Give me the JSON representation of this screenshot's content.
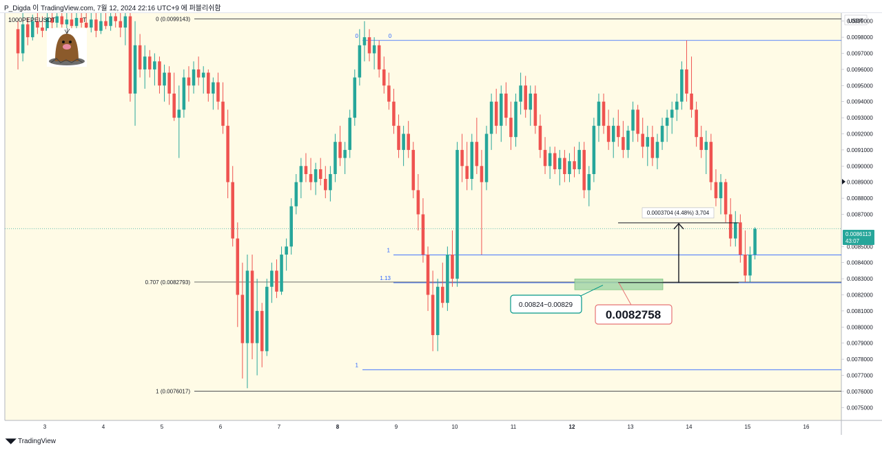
{
  "header": {
    "publish_line": "P_Digda 이 TradingView.com, 7월 12, 2024 22:16 UTC+9 에 퍼블리쉬함"
  },
  "chart_data": {
    "type": "candlestick",
    "symbol": "1000PEPEUSDT",
    "symbol_suffix": "T",
    "currency_label": "USDT",
    "y_range": [
      0.00742,
      0.00995
    ],
    "y_ticks": [
      "0.0099000",
      "0.0098000",
      "0.0097000",
      "0.0096000",
      "0.0095000",
      "0.0094000",
      "0.0093000",
      "0.0092000",
      "0.0091000",
      "0.0090000",
      "0.0089000",
      "0.0088000",
      "0.0087000",
      "0.0085000",
      "0.0084000",
      "0.0083000",
      "0.0082000",
      "0.0081000",
      "0.0080000",
      "0.0079000",
      "0.0078000",
      "0.0077000",
      "0.0076000",
      "0.0075000"
    ],
    "x_ticks": [
      "3",
      "4",
      "5",
      "6",
      "7",
      "8",
      "9",
      "10",
      "11",
      "12",
      "13",
      "14",
      "15",
      "16"
    ],
    "x_ticks_bold": [
      "8",
      "12"
    ],
    "last_price": "0.0086113",
    "countdown": "43:07",
    "fib_set_1": {
      "levels": [
        {
          "label": "0 (0.0099143)",
          "price": 0.0099143
        },
        {
          "label": "0.707 (0.0082793)",
          "price": 0.0082793
        },
        {
          "label": "1 (0.0076017)",
          "price": 0.0076017
        }
      ]
    },
    "fib_set_2": {
      "levels": [
        {
          "label": "0",
          "price": 0.00978
        },
        {
          "label": "0",
          "price": 0.00978
        },
        {
          "label": "1",
          "price": 0.008448
        },
        {
          "label": "1.13",
          "price": 0.008275
        },
        {
          "label": "1",
          "price": 0.007735
        }
      ]
    },
    "support_zone": {
      "from": 0.00824,
      "to": 0.00829
    },
    "annotations": {
      "zone_label": "0.00824~0.00829",
      "price_callout": "0.0082758",
      "measure_label": "0.0003704 (4.48%) 3,704"
    },
    "colors": {
      "background": "#fffbe6",
      "up": "#26a69a",
      "down": "#ef5350",
      "fib_blue": "#2962ff",
      "fib_black": "#131722",
      "zone_fill": "#a5d6a7",
      "callout_teal": "#009688",
      "callout_red": "#e57373",
      "price_badge": "#26a69a"
    },
    "candles_per_day": 12,
    "day_start": 2.5,
    "series": [
      {
        "o": 0.00985,
        "h": 0.0099,
        "l": 0.0096,
        "c": 0.0097
      },
      {
        "o": 0.0097,
        "h": 0.00995,
        "l": 0.00965,
        "c": 0.00988
      },
      {
        "o": 0.00988,
        "h": 0.00992,
        "l": 0.00975,
        "c": 0.0098
      },
      {
        "o": 0.0098,
        "h": 0.00994,
        "l": 0.00978,
        "c": 0.0099
      },
      {
        "o": 0.0099,
        "h": 0.00995,
        "l": 0.00982,
        "c": 0.00986
      },
      {
        "o": 0.00986,
        "h": 0.00993,
        "l": 0.0098,
        "c": 0.00984
      },
      {
        "o": 0.00984,
        "h": 0.00995,
        "l": 0.00983,
        "c": 0.00992
      },
      {
        "o": 0.00992,
        "h": 0.00995,
        "l": 0.00985,
        "c": 0.00989
      },
      {
        "o": 0.00989,
        "h": 0.00995,
        "l": 0.00986,
        "c": 0.00993
      },
      {
        "o": 0.00993,
        "h": 0.00995,
        "l": 0.00986,
        "c": 0.00988
      },
      {
        "o": 0.00988,
        "h": 0.00995,
        "l": 0.00984,
        "c": 0.00991
      },
      {
        "o": 0.00991,
        "h": 0.00995,
        "l": 0.00985,
        "c": 0.00987
      },
      {
        "o": 0.00987,
        "h": 0.00995,
        "l": 0.00984,
        "c": 0.00992
      },
      {
        "o": 0.00992,
        "h": 0.00995,
        "l": 0.00986,
        "c": 0.00989
      },
      {
        "o": 0.00989,
        "h": 0.00995,
        "l": 0.00984,
        "c": 0.00986
      },
      {
        "o": 0.00986,
        "h": 0.00995,
        "l": 0.00983,
        "c": 0.00991
      },
      {
        "o": 0.00991,
        "h": 0.00995,
        "l": 0.0098,
        "c": 0.00984
      },
      {
        "o": 0.00984,
        "h": 0.00995,
        "l": 0.00982,
        "c": 0.0099
      },
      {
        "o": 0.0099,
        "h": 0.00995,
        "l": 0.00985,
        "c": 0.00987
      },
      {
        "o": 0.00987,
        "h": 0.00995,
        "l": 0.00984,
        "c": 0.00993
      },
      {
        "o": 0.00993,
        "h": 0.00995,
        "l": 0.00986,
        "c": 0.0099
      },
      {
        "o": 0.0099,
        "h": 0.00995,
        "l": 0.0098,
        "c": 0.00986
      },
      {
        "o": 0.00986,
        "h": 0.00995,
        "l": 0.00975,
        "c": 0.00993
      },
      {
        "o": 0.00993,
        "h": 0.00995,
        "l": 0.0094,
        "c": 0.00945
      },
      {
        "o": 0.00945,
        "h": 0.0099,
        "l": 0.00925,
        "c": 0.00975
      },
      {
        "o": 0.00975,
        "h": 0.00982,
        "l": 0.00955,
        "c": 0.0096
      },
      {
        "o": 0.0096,
        "h": 0.00975,
        "l": 0.00948,
        "c": 0.00968
      },
      {
        "o": 0.00968,
        "h": 0.00972,
        "l": 0.00955,
        "c": 0.0096
      },
      {
        "o": 0.0096,
        "h": 0.0097,
        "l": 0.0095,
        "c": 0.00965
      },
      {
        "o": 0.00965,
        "h": 0.00968,
        "l": 0.00945,
        "c": 0.0095
      },
      {
        "o": 0.0095,
        "h": 0.00963,
        "l": 0.0094,
        "c": 0.00958
      },
      {
        "o": 0.00958,
        "h": 0.00962,
        "l": 0.00938,
        "c": 0.00945
      },
      {
        "o": 0.00945,
        "h": 0.00958,
        "l": 0.00928,
        "c": 0.0093
      },
      {
        "o": 0.0093,
        "h": 0.0095,
        "l": 0.00905,
        "c": 0.00935
      },
      {
        "o": 0.00935,
        "h": 0.0096,
        "l": 0.0093,
        "c": 0.00955
      },
      {
        "o": 0.00955,
        "h": 0.00962,
        "l": 0.0094,
        "c": 0.0095
      },
      {
        "o": 0.0095,
        "h": 0.00965,
        "l": 0.00945,
        "c": 0.0096
      },
      {
        "o": 0.0096,
        "h": 0.00968,
        "l": 0.0095,
        "c": 0.00955
      },
      {
        "o": 0.00955,
        "h": 0.00962,
        "l": 0.00945,
        "c": 0.00958
      },
      {
        "o": 0.00958,
        "h": 0.0096,
        "l": 0.0094,
        "c": 0.00945
      },
      {
        "o": 0.00945,
        "h": 0.00955,
        "l": 0.00935,
        "c": 0.00952
      },
      {
        "o": 0.00952,
        "h": 0.00958,
        "l": 0.00935,
        "c": 0.0094
      },
      {
        "o": 0.0094,
        "h": 0.00952,
        "l": 0.0092,
        "c": 0.00925
      },
      {
        "o": 0.00925,
        "h": 0.00935,
        "l": 0.0088,
        "c": 0.0089
      },
      {
        "o": 0.0089,
        "h": 0.009,
        "l": 0.0085,
        "c": 0.00855
      },
      {
        "o": 0.00855,
        "h": 0.00865,
        "l": 0.008,
        "c": 0.0082
      },
      {
        "o": 0.0082,
        "h": 0.0084,
        "l": 0.00768,
        "c": 0.0079
      },
      {
        "o": 0.0079,
        "h": 0.00845,
        "l": 0.00762,
        "c": 0.00835
      },
      {
        "o": 0.00835,
        "h": 0.00845,
        "l": 0.0078,
        "c": 0.0079
      },
      {
        "o": 0.0079,
        "h": 0.0083,
        "l": 0.0077,
        "c": 0.0081
      },
      {
        "o": 0.0081,
        "h": 0.00815,
        "l": 0.00775,
        "c": 0.00785
      },
      {
        "o": 0.00785,
        "h": 0.0083,
        "l": 0.00782,
        "c": 0.00825
      },
      {
        "o": 0.00825,
        "h": 0.0084,
        "l": 0.00815,
        "c": 0.00835
      },
      {
        "o": 0.00835,
        "h": 0.00842,
        "l": 0.00818,
        "c": 0.00822
      },
      {
        "o": 0.00822,
        "h": 0.0085,
        "l": 0.0082,
        "c": 0.00845
      },
      {
        "o": 0.00845,
        "h": 0.00855,
        "l": 0.00835,
        "c": 0.0085
      },
      {
        "o": 0.0085,
        "h": 0.0088,
        "l": 0.00845,
        "c": 0.00875
      },
      {
        "o": 0.00875,
        "h": 0.00895,
        "l": 0.0087,
        "c": 0.0089
      },
      {
        "o": 0.0089,
        "h": 0.00905,
        "l": 0.0088,
        "c": 0.009
      },
      {
        "o": 0.009,
        "h": 0.00908,
        "l": 0.0089,
        "c": 0.00895
      },
      {
        "o": 0.00895,
        "h": 0.00905,
        "l": 0.00885,
        "c": 0.0089
      },
      {
        "o": 0.0089,
        "h": 0.00902,
        "l": 0.00882,
        "c": 0.00898
      },
      {
        "o": 0.00898,
        "h": 0.00905,
        "l": 0.00888,
        "c": 0.00892
      },
      {
        "o": 0.00892,
        "h": 0.009,
        "l": 0.0088,
        "c": 0.00885
      },
      {
        "o": 0.00885,
        "h": 0.009,
        "l": 0.00878,
        "c": 0.00895
      },
      {
        "o": 0.00895,
        "h": 0.0092,
        "l": 0.0089,
        "c": 0.00915
      },
      {
        "o": 0.00915,
        "h": 0.00925,
        "l": 0.009,
        "c": 0.00905
      },
      {
        "o": 0.00905,
        "h": 0.00915,
        "l": 0.00895,
        "c": 0.0091
      },
      {
        "o": 0.0091,
        "h": 0.00935,
        "l": 0.00905,
        "c": 0.0093
      },
      {
        "o": 0.0093,
        "h": 0.0096,
        "l": 0.00925,
        "c": 0.00955
      },
      {
        "o": 0.00955,
        "h": 0.00985,
        "l": 0.0095,
        "c": 0.00975
      },
      {
        "o": 0.00975,
        "h": 0.0099,
        "l": 0.00965,
        "c": 0.0098
      },
      {
        "o": 0.0098,
        "h": 0.00985,
        "l": 0.00965,
        "c": 0.0097
      },
      {
        "o": 0.0097,
        "h": 0.0098,
        "l": 0.0096,
        "c": 0.00975
      },
      {
        "o": 0.00975,
        "h": 0.00978,
        "l": 0.00955,
        "c": 0.0096
      },
      {
        "o": 0.0096,
        "h": 0.00968,
        "l": 0.00945,
        "c": 0.0095
      },
      {
        "o": 0.0095,
        "h": 0.00958,
        "l": 0.00935,
        "c": 0.0094
      },
      {
        "o": 0.0094,
        "h": 0.00948,
        "l": 0.0092,
        "c": 0.00925
      },
      {
        "o": 0.00925,
        "h": 0.00932,
        "l": 0.00905,
        "c": 0.0091
      },
      {
        "o": 0.0091,
        "h": 0.00925,
        "l": 0.009,
        "c": 0.0092
      },
      {
        "o": 0.0092,
        "h": 0.00928,
        "l": 0.00905,
        "c": 0.0091
      },
      {
        "o": 0.0091,
        "h": 0.00915,
        "l": 0.0088,
        "c": 0.00885
      },
      {
        "o": 0.00885,
        "h": 0.00895,
        "l": 0.0086,
        "c": 0.0087
      },
      {
        "o": 0.0087,
        "h": 0.0088,
        "l": 0.0084,
        "c": 0.00845
      },
      {
        "o": 0.00845,
        "h": 0.0085,
        "l": 0.0081,
        "c": 0.0082
      },
      {
        "o": 0.0082,
        "h": 0.00835,
        "l": 0.00785,
        "c": 0.00795
      },
      {
        "o": 0.00795,
        "h": 0.0083,
        "l": 0.00785,
        "c": 0.00825
      },
      {
        "o": 0.00825,
        "h": 0.0084,
        "l": 0.00812,
        "c": 0.00815
      },
      {
        "o": 0.00815,
        "h": 0.0085,
        "l": 0.0081,
        "c": 0.00845
      },
      {
        "o": 0.00845,
        "h": 0.0086,
        "l": 0.00825,
        "c": 0.0083
      },
      {
        "o": 0.0083,
        "h": 0.00915,
        "l": 0.00825,
        "c": 0.0091
      },
      {
        "o": 0.0091,
        "h": 0.0092,
        "l": 0.0089,
        "c": 0.009
      },
      {
        "o": 0.009,
        "h": 0.00915,
        "l": 0.00885,
        "c": 0.00892
      },
      {
        "o": 0.00892,
        "h": 0.0092,
        "l": 0.00885,
        "c": 0.00915
      },
      {
        "o": 0.00915,
        "h": 0.0093,
        "l": 0.00895,
        "c": 0.009
      },
      {
        "o": 0.009,
        "h": 0.0091,
        "l": 0.00845,
        "c": 0.0089
      },
      {
        "o": 0.0089,
        "h": 0.00925,
        "l": 0.00885,
        "c": 0.0092
      },
      {
        "o": 0.0092,
        "h": 0.00945,
        "l": 0.0091,
        "c": 0.0094
      },
      {
        "o": 0.0094,
        "h": 0.00948,
        "l": 0.0092,
        "c": 0.00925
      },
      {
        "o": 0.00925,
        "h": 0.0095,
        "l": 0.00915,
        "c": 0.00945
      },
      {
        "o": 0.00945,
        "h": 0.00952,
        "l": 0.00925,
        "c": 0.0093
      },
      {
        "o": 0.0093,
        "h": 0.0094,
        "l": 0.0091,
        "c": 0.00918
      },
      {
        "o": 0.00918,
        "h": 0.00945,
        "l": 0.00912,
        "c": 0.0094
      },
      {
        "o": 0.0094,
        "h": 0.00958,
        "l": 0.00932,
        "c": 0.0095
      },
      {
        "o": 0.0095,
        "h": 0.00956,
        "l": 0.0093,
        "c": 0.00935
      },
      {
        "o": 0.00935,
        "h": 0.0095,
        "l": 0.00925,
        "c": 0.00945
      },
      {
        "o": 0.00945,
        "h": 0.0095,
        "l": 0.0092,
        "c": 0.00925
      },
      {
        "o": 0.00925,
        "h": 0.00932,
        "l": 0.00905,
        "c": 0.0091
      },
      {
        "o": 0.0091,
        "h": 0.00918,
        "l": 0.00895,
        "c": 0.009
      },
      {
        "o": 0.009,
        "h": 0.00912,
        "l": 0.00892,
        "c": 0.00908
      },
      {
        "o": 0.00908,
        "h": 0.00912,
        "l": 0.00895,
        "c": 0.00898
      },
      {
        "o": 0.00898,
        "h": 0.0091,
        "l": 0.00888,
        "c": 0.00905
      },
      {
        "o": 0.00905,
        "h": 0.0091,
        "l": 0.0089,
        "c": 0.00895
      },
      {
        "o": 0.00895,
        "h": 0.00908,
        "l": 0.0089,
        "c": 0.00903
      },
      {
        "o": 0.00903,
        "h": 0.00912,
        "l": 0.00893,
        "c": 0.00898
      },
      {
        "o": 0.00898,
        "h": 0.00915,
        "l": 0.00895,
        "c": 0.0091
      },
      {
        "o": 0.0091,
        "h": 0.00915,
        "l": 0.0088,
        "c": 0.00885
      },
      {
        "o": 0.00885,
        "h": 0.009,
        "l": 0.00875,
        "c": 0.00895
      },
      {
        "o": 0.00895,
        "h": 0.0093,
        "l": 0.0089,
        "c": 0.00925
      },
      {
        "o": 0.00925,
        "h": 0.00945,
        "l": 0.00915,
        "c": 0.0094
      },
      {
        "o": 0.0094,
        "h": 0.00945,
        "l": 0.0092,
        "c": 0.00925
      },
      {
        "o": 0.00925,
        "h": 0.00935,
        "l": 0.0091,
        "c": 0.00915
      },
      {
        "o": 0.00915,
        "h": 0.0093,
        "l": 0.00905,
        "c": 0.00925
      },
      {
        "o": 0.00925,
        "h": 0.00935,
        "l": 0.00912,
        "c": 0.00918
      },
      {
        "o": 0.00918,
        "h": 0.00928,
        "l": 0.00905,
        "c": 0.0091
      },
      {
        "o": 0.0091,
        "h": 0.00925,
        "l": 0.00905,
        "c": 0.00922
      },
      {
        "o": 0.00922,
        "h": 0.0094,
        "l": 0.00915,
        "c": 0.00935
      },
      {
        "o": 0.00935,
        "h": 0.00938,
        "l": 0.00915,
        "c": 0.0092
      },
      {
        "o": 0.0092,
        "h": 0.0093,
        "l": 0.00905,
        "c": 0.00912
      },
      {
        "o": 0.00912,
        "h": 0.00925,
        "l": 0.009,
        "c": 0.00918
      },
      {
        "o": 0.00918,
        "h": 0.00925,
        "l": 0.009,
        "c": 0.00905
      },
      {
        "o": 0.00905,
        "h": 0.0092,
        "l": 0.00898,
        "c": 0.00915
      },
      {
        "o": 0.00915,
        "h": 0.0093,
        "l": 0.0091,
        "c": 0.00925
      },
      {
        "o": 0.00925,
        "h": 0.00935,
        "l": 0.00915,
        "c": 0.0093
      },
      {
        "o": 0.0093,
        "h": 0.0094,
        "l": 0.0092,
        "c": 0.00935
      },
      {
        "o": 0.00935,
        "h": 0.00945,
        "l": 0.00928,
        "c": 0.0094
      },
      {
        "o": 0.0094,
        "h": 0.00965,
        "l": 0.00935,
        "c": 0.0096
      },
      {
        "o": 0.0096,
        "h": 0.00978,
        "l": 0.0094,
        "c": 0.00945
      },
      {
        "o": 0.00945,
        "h": 0.00968,
        "l": 0.0093,
        "c": 0.00935
      },
      {
        "o": 0.00935,
        "h": 0.0094,
        "l": 0.00912,
        "c": 0.00918
      },
      {
        "o": 0.00918,
        "h": 0.00925,
        "l": 0.00905,
        "c": 0.0091
      },
      {
        "o": 0.0091,
        "h": 0.00922,
        "l": 0.00895,
        "c": 0.00915
      },
      {
        "o": 0.00915,
        "h": 0.0092,
        "l": 0.00885,
        "c": 0.0089
      },
      {
        "o": 0.0089,
        "h": 0.00898,
        "l": 0.00875,
        "c": 0.0088
      },
      {
        "o": 0.0088,
        "h": 0.00895,
        "l": 0.0087,
        "c": 0.0089
      },
      {
        "o": 0.0089,
        "h": 0.00892,
        "l": 0.00865,
        "c": 0.0087
      },
      {
        "o": 0.0087,
        "h": 0.0088,
        "l": 0.0085,
        "c": 0.00855
      },
      {
        "o": 0.00855,
        "h": 0.00872,
        "l": 0.0085,
        "c": 0.00865
      },
      {
        "o": 0.00865,
        "h": 0.0087,
        "l": 0.0084,
        "c": 0.00845
      },
      {
        "o": 0.00845,
        "h": 0.0086,
        "l": 0.00828,
        "c": 0.00832
      },
      {
        "o": 0.00832,
        "h": 0.0085,
        "l": 0.00828,
        "c": 0.00845
      },
      {
        "o": 0.00845,
        "h": 0.00862,
        "l": 0.00842,
        "c": 0.00861
      }
    ]
  }
}
